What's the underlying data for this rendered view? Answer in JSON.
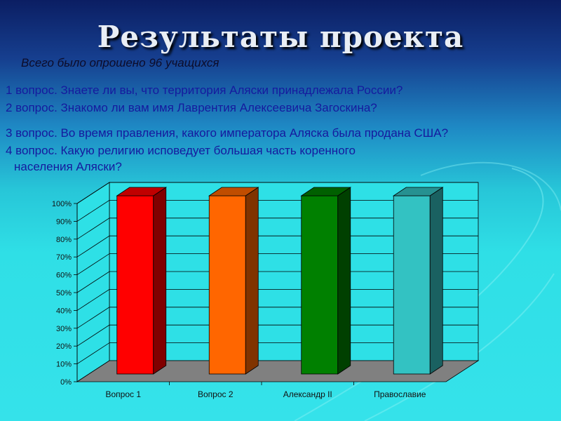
{
  "slide": {
    "title": "Результаты проекта",
    "subtitle": "Всего было опрошено 96 учащихся",
    "questions": [
      "1 вопрос. Знаете ли вы, что  территория Аляски принадлежала России?",
      "2 вопрос. Знакомо ли вам имя Лаврентия Алексеевича Загоскина?",
      "3 вопрос.  Во время правления,  какого императора Аляска была продана США?",
      "4 вопрос.    Какую религию исповедует большая часть коренного",
      "населения Аляски?"
    ]
  },
  "chart_data": {
    "type": "bar",
    "title": "",
    "xlabel": "",
    "ylabel": "",
    "categories": [
      "Вопрос 1",
      "Вопрос 2",
      "Александр II",
      "Православие"
    ],
    "values": [
      100,
      100,
      100,
      100
    ],
    "ylim": [
      0,
      100
    ],
    "y_ticks": [
      "0%",
      "10%",
      "20%",
      "30%",
      "40%",
      "50%",
      "60%",
      "70%",
      "80%",
      "90%",
      "100%"
    ],
    "grid": true,
    "legend": "none",
    "colors": [
      "#ff0000",
      "#ff6600",
      "#008000",
      "#33c2c2"
    ],
    "side_colors": [
      "#800000",
      "#803300",
      "#004000",
      "#1a6161"
    ],
    "top_colors": [
      "#c00000",
      "#c04d00",
      "#006000",
      "#269191"
    ],
    "floor_color": "#808080",
    "wall_color": "#2ee0e6"
  }
}
